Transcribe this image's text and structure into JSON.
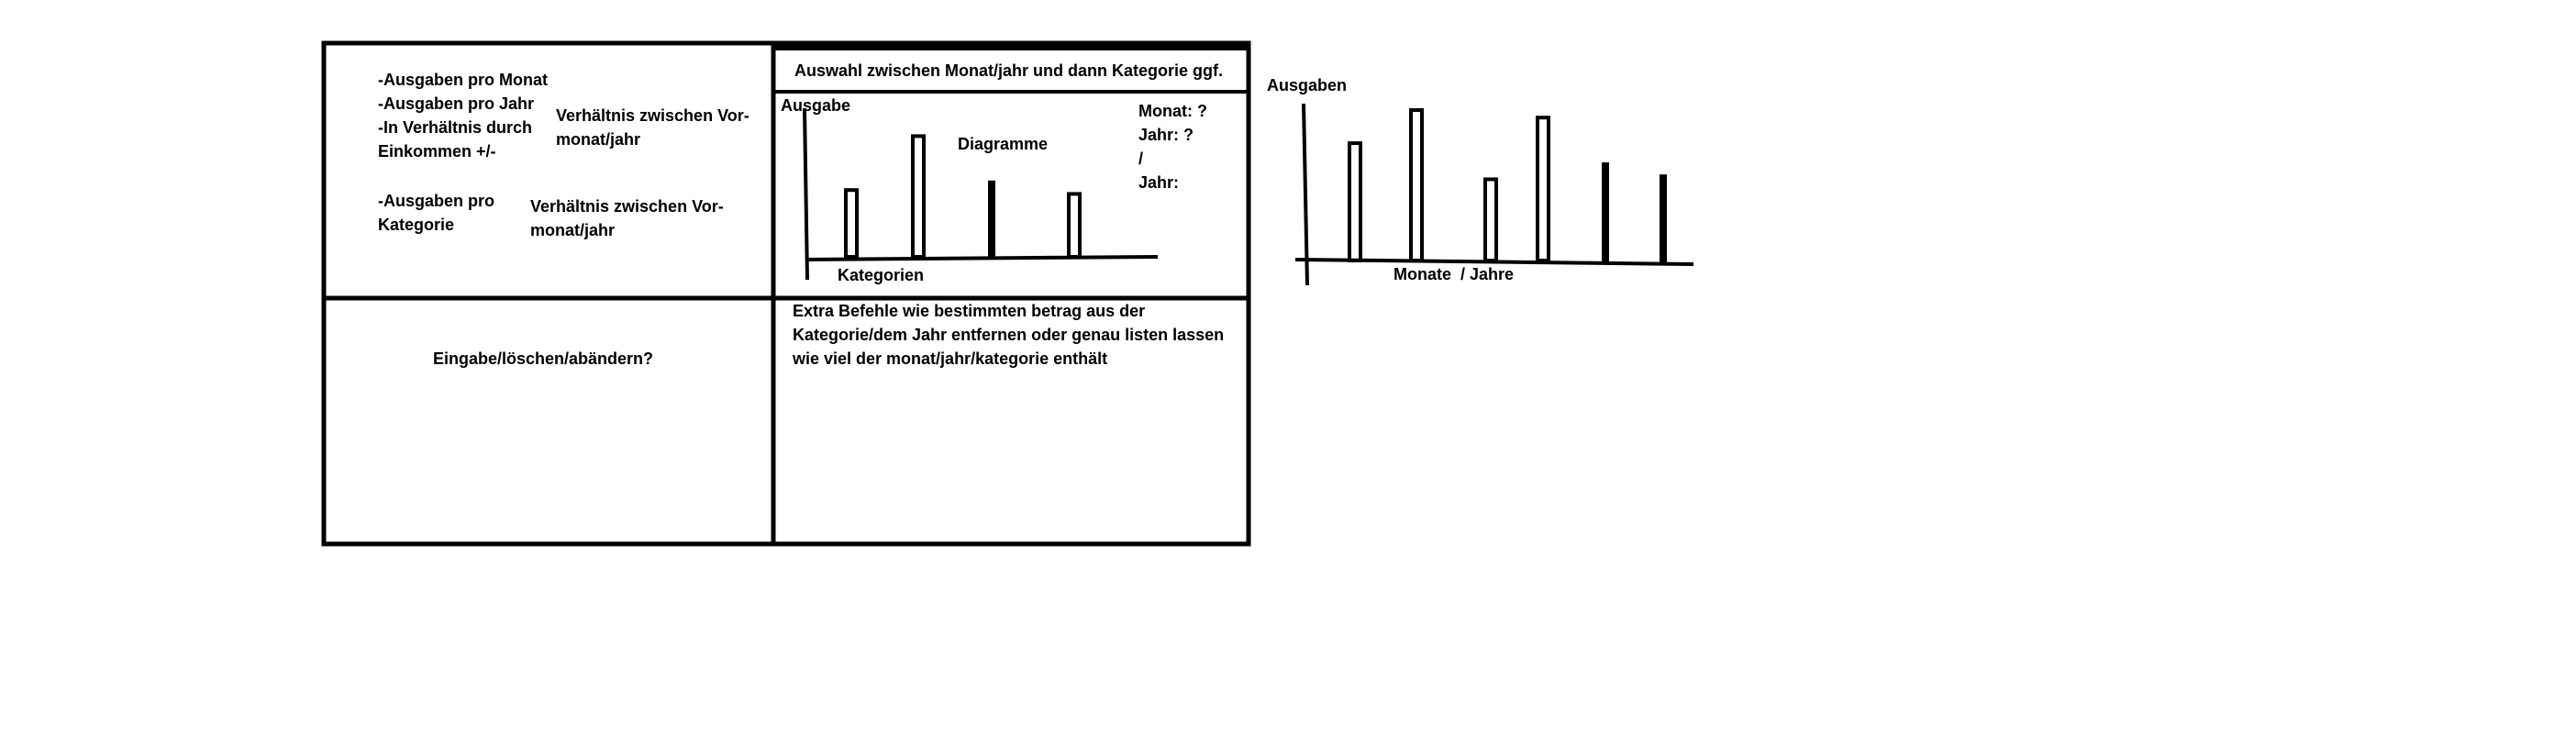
{
  "left_panel": {
    "spending_list": "-Ausgaben pro Monat\n-Ausgaben pro Jahr\n-In Verhältnis durch\nEinkommen +/-",
    "ratio_note_1": "Verhältnis zwischen Vor-\nmonat/jahr",
    "category_item": "-Ausgaben pro\nKategorie",
    "ratio_note_2": "Verhältnis zwischen Vor-\nmonat/jahr"
  },
  "chart_panel": {
    "selection_bar": "Auswahl zwischen Monat/jahr und dann Kategorie ggf.",
    "y_label": "Ausgabe",
    "title": "Diagramme",
    "x_label": "Kategorien",
    "side_info": "Monat: ?\nJahr: ?\n/\nJahr:"
  },
  "input_panel": {
    "label": "Eingabe/löschen/abändern?"
  },
  "commands_panel": {
    "text": "Extra Befehle wie bestimmten betrag aus der\nKategorie/dem Jahr entfernen oder genau listen lassen\nwie viel der monat/jahr/kategorie enthält"
  },
  "side_chart": {
    "y_label": "Ausgaben",
    "x_label": "Monate  / Jahre"
  },
  "chart_data": [
    {
      "type": "bar",
      "title": "Diagramme",
      "xlabel": "Kategorien",
      "ylabel": "Ausgabe",
      "values": [
        0.52,
        0.94,
        0.58,
        0.49
      ],
      "styles": [
        "outline",
        "outline",
        "filled",
        "outline"
      ]
    },
    {
      "type": "bar",
      "title": "",
      "xlabel": "Monate  / Jahre",
      "ylabel": "Ausgaben",
      "values": [
        0.78,
        1.0,
        0.54,
        0.95,
        0.64,
        0.56
      ],
      "styles": [
        "outline",
        "outline",
        "outline",
        "outline",
        "filled",
        "filled"
      ]
    }
  ]
}
